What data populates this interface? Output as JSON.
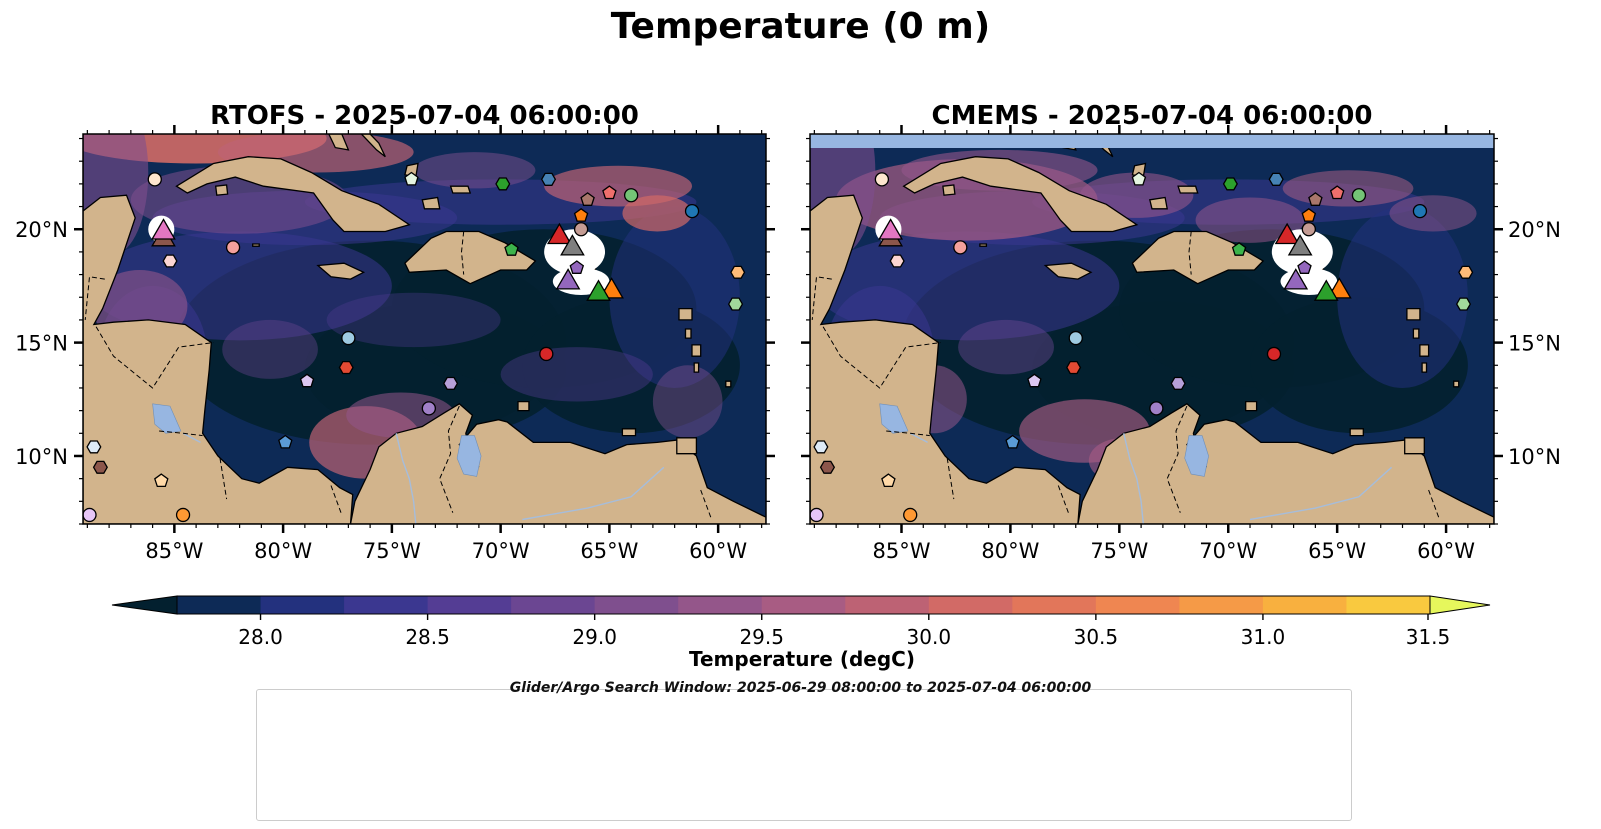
{
  "title": "Temperature (0 m)",
  "search_window": "Glider/Argo Search Window: 2025-06-29 08:00:00 to 2025-07-04 06:00:00",
  "colors": {
    "land": "#d2b48c",
    "lakes": "#97b6e1",
    "rivers": "#a6bddb",
    "cmems_nodata": "#97b6e1",
    "cmap": [
      "#03202f",
      "#0d2a56",
      "#23317e",
      "#3b3790",
      "#543d94",
      "#6b4692",
      "#7f4f8e",
      "#94568a",
      "#a85c83",
      "#bd6274",
      "#d26a66",
      "#e2765a",
      "#ef8651",
      "#f59a47",
      "#f8b03f",
      "#f9c93f",
      "#f7e24e",
      "#e6f75c"
    ]
  },
  "maps": [
    {
      "id": "rtofs",
      "title": "RTOFS - 2025-07-04 06:00:00"
    },
    {
      "id": "cmems",
      "title": "CMEMS - 2025-07-04 06:00:00"
    }
  ],
  "axes": {
    "lon_range": [
      -89.2,
      -57.8
    ],
    "lat_range": [
      7.0,
      24.2
    ],
    "lon_ticks": [
      -85,
      -80,
      -75,
      -70,
      -65,
      -60
    ],
    "lon_labels": [
      "85°W",
      "80°W",
      "75°W",
      "70°W",
      "65°W",
      "60°W"
    ],
    "lat_ticks": [
      10,
      15,
      20
    ],
    "lat_labels": [
      "10°N",
      "15°N",
      "20°N"
    ]
  },
  "colorbar": {
    "label": "Temperature (degC)",
    "vmin": 27.75,
    "vmax": 31.5,
    "ticks": [
      28.0,
      28.5,
      29.0,
      29.5,
      30.0,
      30.5,
      31.0,
      31.5
    ],
    "tick_labels": [
      "28.0",
      "28.5",
      "29.0",
      "29.5",
      "30.0",
      "30.5",
      "31.0",
      "31.5"
    ]
  },
  "floats": [
    {
      "id": "1902313",
      "marker": "circle",
      "color": "#1f77b4",
      "lon": -61.2,
      "lat": 20.8
    },
    {
      "id": "1902363",
      "marker": "hexagon",
      "color": "#4682b4",
      "lon": -67.8,
      "lat": 22.2
    },
    {
      "id": "1902521",
      "marker": "pentagon",
      "color": "#5b9bd5",
      "lon": -79.9,
      "lat": 10.6
    },
    {
      "id": "1902522",
      "marker": "circle",
      "color": "#9ecae1",
      "lon": -77.0,
      "lat": 15.2
    },
    {
      "id": "2903904",
      "marker": "hexagon",
      "color": "#deebf7",
      "lon": -88.7,
      "lat": 10.4
    },
    {
      "id": "2904007",
      "marker": "pentagon",
      "color": "#ff7f0e",
      "lon": -66.3,
      "lat": 20.6
    },
    {
      "id": "4902476",
      "marker": "circle",
      "color": "#ff9933",
      "lon": -84.6,
      "lat": 7.4
    },
    {
      "id": "4902609",
      "marker": "hexagon",
      "color": "#ffbb78",
      "lon": -59.1,
      "lat": 18.1
    },
    {
      "id": "4903186",
      "marker": "pentagon",
      "color": "#ffd9a8",
      "lon": -85.6,
      "lat": 8.9
    },
    {
      "id": "4903249",
      "marker": "circle",
      "color": "#fee6ce",
      "lon": -85.9,
      "lat": 22.2
    },
    {
      "id": "4903274",
      "marker": "hexagon",
      "color": "#2ca02c",
      "lon": -69.9,
      "lat": 22.0
    },
    {
      "id": "4903276",
      "marker": "pentagon",
      "color": "#3cb44b",
      "lon": -69.5,
      "lat": 19.1
    },
    {
      "id": "4903333",
      "marker": "circle",
      "color": "#74c476",
      "lon": -64.0,
      "lat": 21.5
    },
    {
      "id": "4903339",
      "marker": "hexagon",
      "color": "#a1d99b",
      "lon": -59.2,
      "lat": 16.7
    },
    {
      "id": "4903348",
      "marker": "pentagon",
      "color": "#e5f5e0",
      "lon": -74.1,
      "lat": 22.2
    },
    {
      "id": "4903349",
      "marker": "circle",
      "color": "#d62728",
      "lon": -67.9,
      "lat": 14.5
    },
    {
      "id": "4903350",
      "marker": "hexagon",
      "color": "#e34a33",
      "lon": -77.1,
      "lat": 13.9
    },
    {
      "id": "4903352",
      "marker": "pentagon",
      "color": "#ef6f6c",
      "lon": -65.0,
      "lat": 21.6
    },
    {
      "id": "4903559",
      "marker": "circle",
      "color": "#f4a19c",
      "lon": -82.3,
      "lat": 19.2
    },
    {
      "id": "4903562",
      "marker": "hexagon",
      "color": "#fcd5d2",
      "lon": -85.2,
      "lat": 18.6
    },
    {
      "id": "4903563",
      "marker": "pentagon",
      "color": "#9467bd",
      "lon": -66.5,
      "lat": 18.3
    },
    {
      "id": "4903766",
      "marker": "circle",
      "color": "#a180c8",
      "lon": -73.3,
      "lat": 12.1
    },
    {
      "id": "4903767",
      "marker": "hexagon",
      "color": "#b79fd8",
      "lon": -72.3,
      "lat": 13.2
    },
    {
      "id": "4903768",
      "marker": "pentagon",
      "color": "#dcc6f0",
      "lon": -78.9,
      "lat": 13.3
    },
    {
      "id": "5906478",
      "marker": "circle",
      "color": "#e7c6f7",
      "lon": -88.9,
      "lat": 7.4
    },
    {
      "id": "5907105",
      "marker": "hexagon",
      "color": "#8c564b",
      "lon": -88.4,
      "lat": 9.5
    },
    {
      "id": "6903727",
      "marker": "pentagon",
      "color": "#a9776b",
      "lon": -66.0,
      "lat": 21.3
    },
    {
      "id": "6999986",
      "marker": "circle",
      "color": "#c49c94",
      "lon": -66.3,
      "lat": 20.0
    }
  ],
  "gliders": [
    {
      "id": "SG678-20250624T1621",
      "color": "#1f77b4",
      "lon": null,
      "lat": null
    },
    {
      "id": "ng615-20250611T0000",
      "color": "#ff7f0e",
      "lon": -64.9,
      "lat": 17.4
    },
    {
      "id": "ng665-20250611T0000",
      "color": "#2ca02c",
      "lon": -65.5,
      "lat": 17.3
    },
    {
      "id": "ng783-20250611T0000",
      "color": "#d62728",
      "lon": -67.3,
      "lat": 19.8
    },
    {
      "id": "sg609-20250625T0000",
      "color": "#9467bd",
      "lon": -66.9,
      "lat": 17.8
    },
    {
      "id": "sg622-20250514T0000",
      "color": "#8c564b",
      "lon": -85.5,
      "lat": 19.7
    },
    {
      "id": "sg651-20250428T0000",
      "color": "#e377c2",
      "lon": -85.5,
      "lat": 20.0
    },
    {
      "id": "sg668-20250625T0000",
      "color": "#7f7f7f",
      "lon": -66.7,
      "lat": 19.3
    }
  ]
}
